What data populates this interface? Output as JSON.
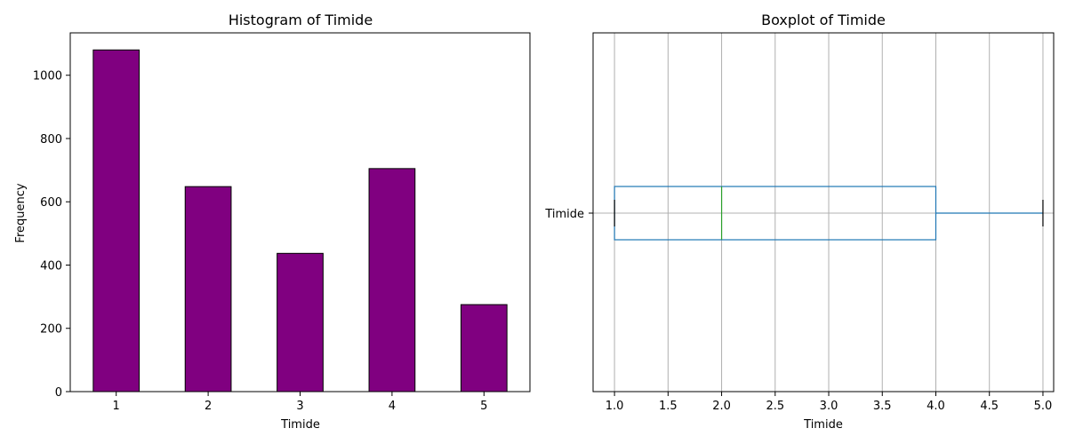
{
  "chart_data": [
    {
      "type": "bar",
      "title": "Histogram of Timide",
      "xlabel": "Timide",
      "ylabel": "Frequency",
      "categories": [
        "1",
        "2",
        "3",
        "4",
        "5"
      ],
      "values": [
        1080,
        648,
        437,
        705,
        275
      ],
      "ylim": [
        0,
        1134
      ],
      "yticks": [
        0,
        200,
        400,
        600,
        800,
        1000
      ],
      "bar_color": "#800080",
      "edge_color": "#000000",
      "grid": false
    },
    {
      "type": "boxplot",
      "orientation": "horizontal",
      "title": "Boxplot of Timide",
      "xlabel": "Timide",
      "category": "Timide",
      "whisker_low": 1.0,
      "q1": 1.0,
      "median": 2.0,
      "q3": 4.0,
      "whisker_high": 5.0,
      "xlim": [
        0.8,
        5.1
      ],
      "xticks": [
        "1.0",
        "1.5",
        "2.0",
        "2.5",
        "3.0",
        "3.5",
        "4.0",
        "4.5",
        "5.0"
      ],
      "box_color": "#1f77b4",
      "median_color": "#2ca02c",
      "cap_color": "#000000",
      "grid": true
    }
  ]
}
